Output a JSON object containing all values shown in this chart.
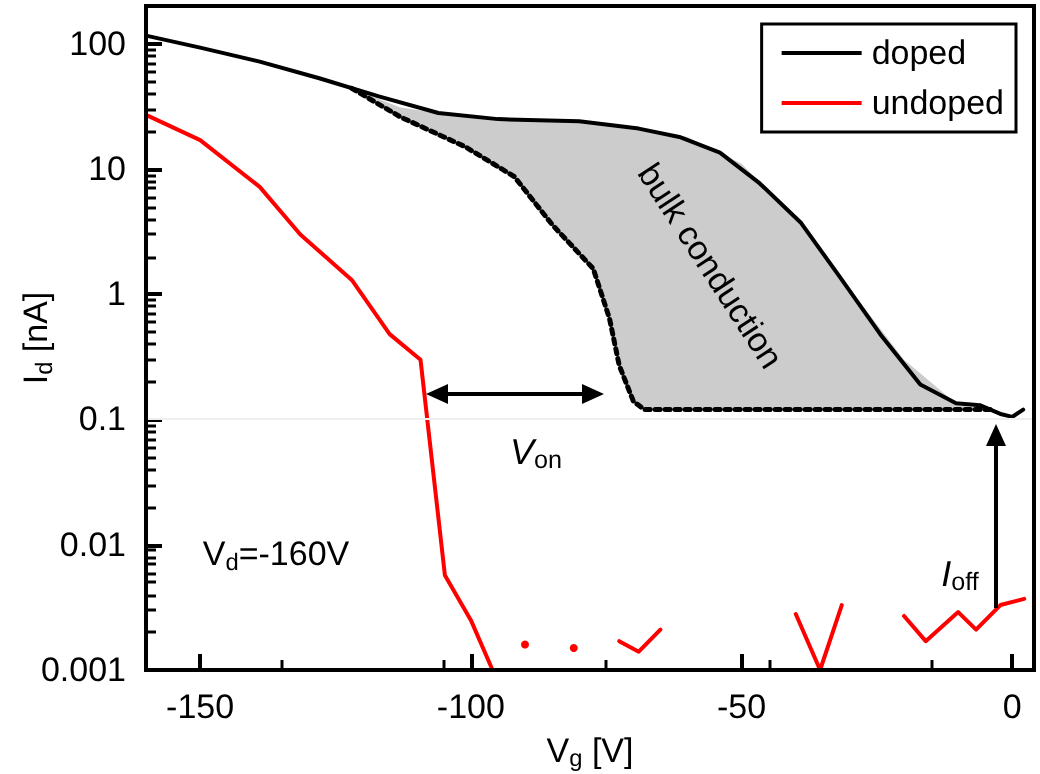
{
  "chart_data": {
    "type": "line",
    "xlabel": "V$_{g}$ [V]",
    "ylabel": "I$_{d}$ [nA]",
    "xlim": [
      -160,
      4
    ],
    "xticks": [
      -150,
      -100,
      -50,
      0
    ],
    "ylim": [
      0.001,
      200
    ],
    "yticks": [
      0.001,
      0.01,
      0.1,
      1,
      10,
      100
    ],
    "log": "y",
    "grid": false,
    "legend": "top right",
    "marker": "none",
    "series": [
      {
        "name": "doped",
        "color": "#000000",
        "x": [
          -160,
          -150,
          -139,
          -128,
          -117,
          -106,
          -95,
          -80,
          -69,
          -61.5,
          -54,
          -46.7,
          -39,
          -32,
          -24.4,
          -17,
          -10.4,
          -6,
          -2,
          0,
          2
        ],
        "values": [
          116,
          93,
          72,
          53,
          38,
          28,
          25,
          24,
          21,
          18,
          13.5,
          7.7,
          3.7,
          1.4,
          0.48,
          0.19,
          0.135,
          0.13,
          0.11,
          0.105,
          0.12
        ]
      },
      {
        "name": "undoped",
        "color": "#ff0000",
        "x": [
          -160,
          -150,
          -139,
          -131.5,
          -122,
          -115,
          -109.3,
          -104.8,
          -100,
          -96,
          -93,
          -90,
          -86,
          -81,
          -77,
          -72.6,
          -69,
          -65,
          -57,
          -47,
          -40,
          -35.5,
          -31.5,
          -25.5,
          -20,
          -16,
          -10,
          -6.7,
          -2.2,
          2.2
        ],
        "values": [
          27,
          17,
          7.2,
          3,
          1.3,
          0.48,
          0.3,
          0.0057,
          0.0025,
          0.001,
          null,
          0.0016,
          null,
          0.0015,
          null,
          0.0017,
          0.0014,
          0.0021,
          null,
          null,
          0.0028,
          0.001,
          0.0033,
          null,
          0.0027,
          0.0017,
          0.0029,
          0.0021,
          0.0033,
          0.0037
        ]
      },
      {
        "color": "#000000",
        "line_style": "dotted",
        "x": [
          -122,
          -113,
          -101,
          -92,
          -85,
          -77.4,
          -74.4,
          -72.6,
          -70,
          -68,
          -60,
          -50,
          -40,
          -30,
          -20,
          -10,
          -3.4
        ],
        "values": [
          44,
          26,
          15,
          8.7,
          3.6,
          1.6,
          0.64,
          0.27,
          0.14,
          0.12,
          0.12,
          0.12,
          0.12,
          0.12,
          0.12,
          0.12,
          0.12
        ],
        "lower": [
          44,
          26,
          15,
          8.7,
          3.6,
          1.6,
          0.64,
          0.27,
          0.14,
          0.12,
          0.12,
          0.12,
          0.12,
          0.12,
          0.12,
          0.12,
          0.12
        ],
        "upper": [
          44,
          31,
          26,
          25,
          24,
          23,
          22,
          22,
          21,
          21,
          18,
          11,
          4,
          1.1,
          0.3,
          0.13,
          0.12
        ]
      }
    ],
    "ref_lines": [
      {
        "axis": "y",
        "value": 0.1,
        "color": "#eeeeee"
      }
    ],
    "annotations": [
      "bulk conduction",
      "V$_{on}$",
      "I$_{off}$",
      "V$_{d}$=-160V"
    ]
  }
}
